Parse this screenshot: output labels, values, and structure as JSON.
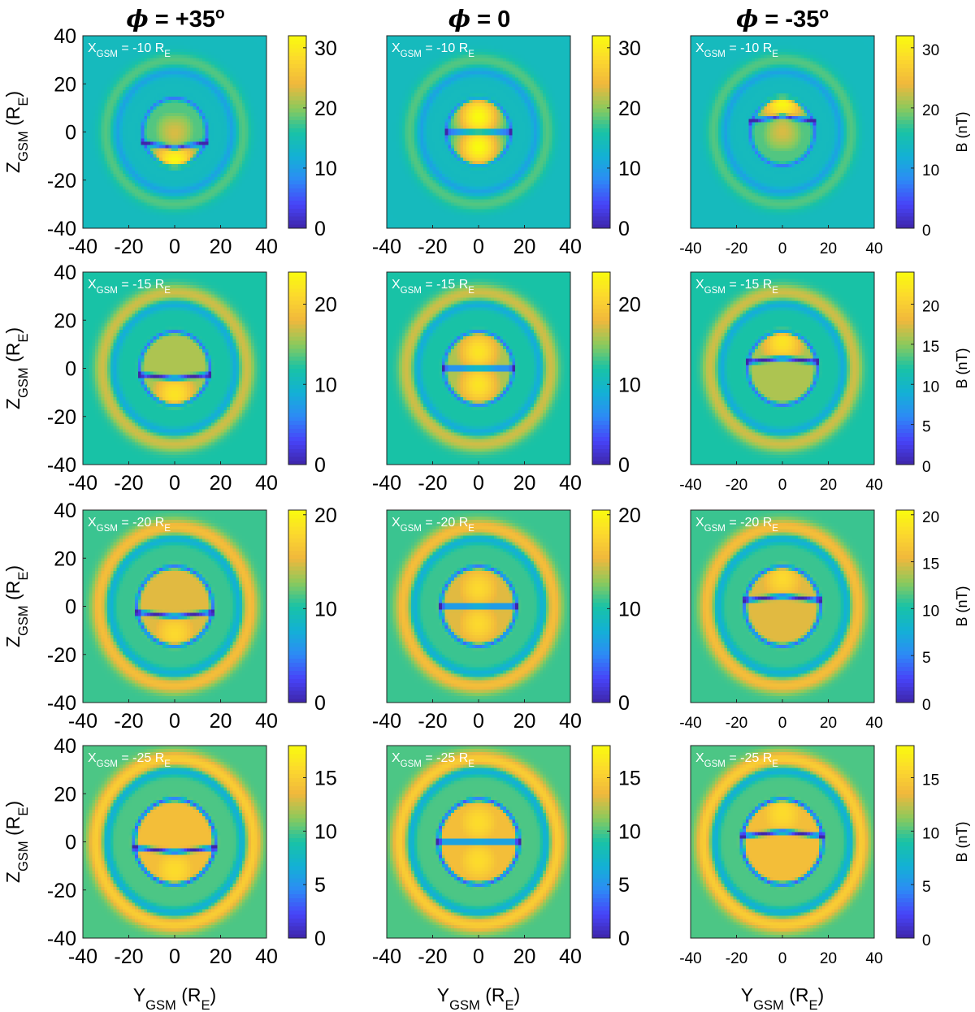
{
  "columns": [
    {
      "phi_symbol": "ϕ",
      "phi_text": " = +35",
      "degree": "o"
    },
    {
      "phi_symbol": "ϕ",
      "phi_text": " = 0",
      "degree": ""
    },
    {
      "phi_symbol": "ϕ",
      "phi_text": " = -35",
      "degree": "o"
    }
  ],
  "axis_labels": {
    "x": {
      "main": "Y",
      "sub": "GSM",
      "unit_open": " (R",
      "unit_sub": "E",
      "unit_close": ")"
    },
    "y": {
      "main": "Z",
      "sub": "GSM",
      "unit_open": " (R",
      "unit_sub": "E",
      "unit_close": ")"
    },
    "colorbar": "B (nT)"
  },
  "colormap": [
    "#3e26a8",
    "#4743f8",
    "#2d8af6",
    "#13b1d5",
    "#18c2a6",
    "#8cca5c",
    "#f0b73c",
    "#fcd82e",
    "#f9fb0e"
  ],
  "chart_data": {
    "type": "heatmap",
    "description_axes": {
      "xlim": [
        -40,
        40
      ],
      "ylim": [
        -40,
        40
      ],
      "xticks": [
        -40,
        -20,
        0,
        20,
        40
      ],
      "yticks": [
        -40,
        -20,
        0,
        20,
        40
      ]
    },
    "rows": [
      {
        "label_prefix": "X",
        "label_sub": "GSM",
        "label_value": " = -10 R",
        "label_unit_sub": "E",
        "clim": [
          0,
          32
        ],
        "cticks": [
          [
            0,
            10,
            20,
            30
          ],
          [
            0,
            10,
            20,
            30
          ],
          [
            0,
            10,
            20,
            30
          ]
        ]
      },
      {
        "label_prefix": "X",
        "label_sub": "GSM",
        "label_value": " = -15 R",
        "label_unit_sub": "E",
        "clim": [
          0,
          24
        ],
        "cticks": [
          [
            0,
            10,
            20
          ],
          [
            0,
            10,
            20
          ],
          [
            0,
            5,
            10,
            15,
            20
          ]
        ]
      },
      {
        "label_prefix": "X",
        "label_sub": "GSM",
        "label_value": " = -20 R",
        "label_unit_sub": "E",
        "clim": [
          0,
          20.5
        ],
        "cticks": [
          [
            0,
            10,
            20
          ],
          [
            0,
            10,
            20
          ],
          [
            0,
            5,
            10,
            15,
            20
          ]
        ]
      },
      {
        "label_prefix": "X",
        "label_sub": "GSM",
        "label_value": " = -25 R",
        "label_unit_sub": "E",
        "clim": [
          0,
          18
        ],
        "cticks": [
          [
            0,
            5,
            10,
            15
          ],
          [
            0,
            5,
            10,
            15
          ],
          [
            0,
            5,
            10,
            15
          ]
        ]
      }
    ],
    "panels_tilt": [
      35,
      0,
      -35
    ],
    "field_model_estimates": {
      "background_B": [
        14,
        12,
        11,
        10
      ],
      "lobe_peak_B": [
        32,
        22,
        18,
        16
      ],
      "ring_B": [
        18,
        17,
        16,
        15
      ]
    }
  }
}
